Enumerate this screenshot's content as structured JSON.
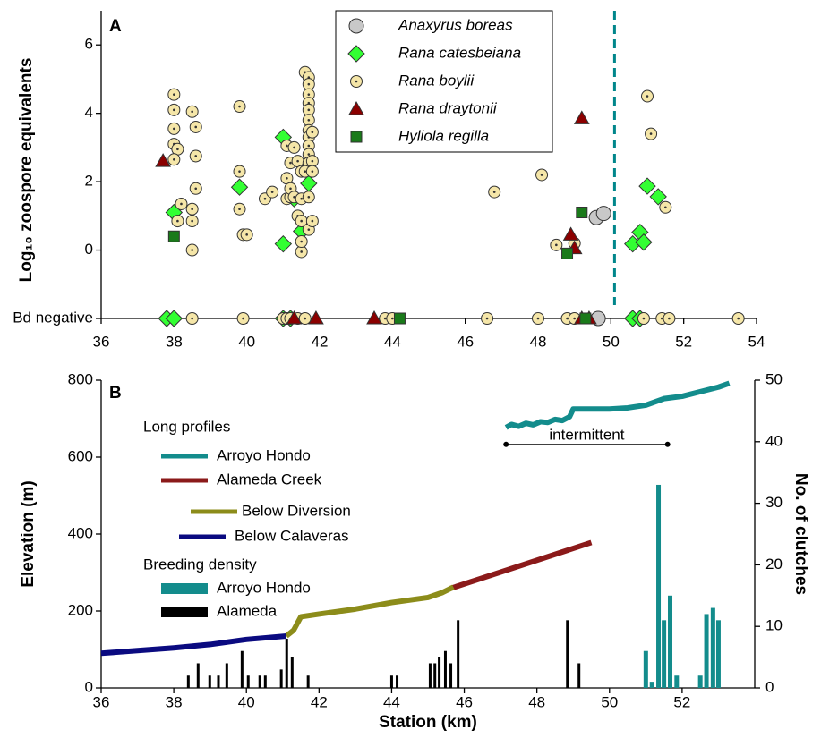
{
  "chart_data": [
    {
      "type": "scatter",
      "panel_label": "A",
      "y_label": "Log₁₀ zoospore equivalents",
      "xlim": [
        36,
        54
      ],
      "xticks": [
        36,
        38,
        40,
        42,
        44,
        46,
        48,
        50,
        52,
        54
      ],
      "ylim": [
        -2,
        7
      ],
      "yticks": [
        {
          "value": -2,
          "label": "Bd negative"
        },
        0,
        2,
        4,
        6
      ],
      "vline": 50.1,
      "vline_color": "#00868b",
      "series": [
        {
          "name": "Anaxyrus boreas",
          "marker": "circle",
          "color": "#c8c8c8",
          "x": [
            49.6,
            49.8,
            49.65
          ],
          "values": [
            0.95,
            1.07,
            -2
          ]
        },
        {
          "name": "Rana catesbeiana",
          "marker": "diamond",
          "color": "#33ff33",
          "x": [
            38.0,
            39.8,
            41.0,
            41.0,
            41.3,
            41.5,
            41.7,
            51.0,
            51.3,
            50.8,
            50.6,
            50.9,
            37.8,
            38.0,
            41.0,
            41.2,
            50.6,
            50.8
          ],
          "values": [
            1.1,
            1.84,
            3.3,
            0.18,
            1.5,
            0.55,
            1.95,
            1.87,
            1.56,
            0.52,
            0.18,
            0.23,
            -2,
            -2,
            -2,
            -2,
            -2,
            -2
          ]
        },
        {
          "name": "Rana boylii",
          "marker": "dot-circle",
          "color": "#f5e6a8",
          "x": [
            38.0,
            38.0,
            38.0,
            38.0,
            38.1,
            38.0,
            38.1,
            38.2,
            38.5,
            38.6,
            38.6,
            38.6,
            38.5,
            38.5,
            38.5,
            39.8,
            39.8,
            39.8,
            39.9,
            40.0,
            40.5,
            40.7,
            41.1,
            41.2,
            41.1,
            41.2,
            41.1,
            41.2,
            41.3,
            41.4,
            41.3,
            41.4,
            41.5,
            41.5,
            41.5,
            41.5,
            41.5,
            41.6,
            41.7,
            41.7,
            41.7,
            41.7,
            41.7,
            41.7,
            41.7,
            41.7,
            41.7,
            41.7,
            41.7,
            41.6,
            41.7,
            41.7,
            41.8,
            41.8,
            41.8,
            41.8,
            46.8,
            48.1,
            48.5,
            49.0,
            51.0,
            51.1,
            51.5,
            38.5,
            39.9,
            41.0,
            41.1,
            41.2,
            41.4,
            41.6,
            43.8,
            44.0,
            46.6,
            48.0,
            48.8,
            49.0,
            50.9,
            51.4,
            51.6,
            53.5
          ],
          "values": [
            4.55,
            4.1,
            3.55,
            3.1,
            2.95,
            2.65,
            0.85,
            1.35,
            4.05,
            3.6,
            2.75,
            1.8,
            1.2,
            0.85,
            0.0,
            4.2,
            2.3,
            1.2,
            0.45,
            0.45,
            1.5,
            1.7,
            1.5,
            1.55,
            3.05,
            2.55,
            2.1,
            1.8,
            1.55,
            2.6,
            3.0,
            1.0,
            -0.05,
            0.25,
            0.85,
            1.5,
            2.3,
            5.2,
            5.05,
            4.85,
            4.55,
            4.3,
            4.1,
            3.8,
            3.5,
            3.3,
            3.05,
            2.8,
            2.55,
            2.3,
            1.55,
            0.6,
            3.45,
            2.6,
            2.3,
            0.85,
            1.7,
            2.2,
            0.15,
            0.2,
            4.5,
            3.4,
            1.25,
            -2,
            -2,
            -2,
            -2,
            -2,
            -2,
            -2,
            -2,
            -2,
            -2,
            -2,
            -2,
            -2,
            -2,
            -2,
            -2,
            -2
          ]
        },
        {
          "name": "Rana draytonii",
          "marker": "triangle",
          "color": "#8b0000",
          "x": [
            37.7,
            49.2,
            48.9,
            49.0,
            41.3,
            41.9,
            43.5,
            49.2,
            49.4
          ],
          "values": [
            2.6,
            3.85,
            0.45,
            0.05,
            -2,
            -2,
            -2,
            -2,
            -2
          ]
        },
        {
          "name": "Hyliola regilla",
          "marker": "square",
          "color": "#1a7a1a",
          "x": [
            38.0,
            49.2,
            48.8,
            44.2,
            49.3
          ],
          "values": [
            0.4,
            1.1,
            -0.1,
            -2,
            -2
          ]
        }
      ]
    },
    {
      "type": "combo",
      "panel_label": "B",
      "x_label": "Station (km)",
      "y_label": "Elevation (m)",
      "y2_label": "No. of clutches",
      "xlim": [
        36,
        54
      ],
      "xticks": [
        36,
        38,
        40,
        42,
        44,
        46,
        48,
        50,
        52
      ],
      "ylim": [
        0,
        800
      ],
      "yticks": [
        0,
        200,
        400,
        600,
        800
      ],
      "y2lim": [
        0,
        50
      ],
      "y2ticks": [
        0,
        10,
        20,
        30,
        40,
        50
      ],
      "legend_groups": [
        "Long profiles",
        "Breeding density"
      ],
      "annotation": {
        "text": "intermittent",
        "x": [
          47.15,
          51.6
        ],
        "y": 633
      },
      "series": [
        {
          "name": "Arroyo Hondo",
          "type": "line",
          "color": "#138c8c",
          "x": [
            47.15,
            47.3,
            47.5,
            47.7,
            47.9,
            48.1,
            48.3,
            48.5,
            48.7,
            48.9,
            49.0,
            50.0,
            50.5,
            51.0,
            51.5,
            52.0,
            52.5,
            53.0,
            53.3
          ],
          "values": [
            677,
            685,
            680,
            688,
            684,
            692,
            690,
            698,
            695,
            705,
            725,
            725,
            728,
            735,
            752,
            758,
            770,
            782,
            792
          ]
        },
        {
          "name": "Alameda Creek",
          "type": "line",
          "color": "#8b1a1a",
          "x": [
            45.6,
            49.5
          ],
          "values": [
            258,
            378
          ]
        },
        {
          "name": "Below Diversion",
          "type": "line",
          "color": "#8c8c1a",
          "x": [
            41.1,
            41.3,
            41.5,
            42.0,
            43.0,
            44.0,
            45.0,
            45.4,
            45.7
          ],
          "values": [
            135,
            150,
            185,
            192,
            205,
            222,
            235,
            248,
            262
          ]
        },
        {
          "name": "Below Calaveras",
          "type": "line",
          "color": "#0a0a80",
          "x": [
            36,
            37,
            38,
            39,
            40,
            41.1
          ],
          "values": [
            90,
            97,
            104,
            113,
            126,
            135
          ]
        },
        {
          "name": "Arroyo Hondo",
          "type": "bar",
          "axis": "y2",
          "color": "#138c8c",
          "x": [
            51.0,
            51.17,
            51.35,
            51.5,
            51.67,
            51.85,
            52.5,
            52.67,
            52.85,
            53.0
          ],
          "values": [
            6,
            1,
            33,
            11,
            15,
            2,
            2,
            12,
            13,
            11
          ]
        },
        {
          "name": "Alameda",
          "type": "bar",
          "axis": "y2",
          "color": "#000000",
          "x": [
            38.4,
            38.67,
            38.99,
            39.23,
            39.46,
            39.88,
            40.05,
            40.37,
            40.52,
            40.96,
            41.11,
            41.26,
            41.7,
            44.0,
            44.15,
            45.06,
            45.19,
            45.31,
            45.48,
            45.63,
            45.83,
            48.84,
            49.16
          ],
          "values": [
            2,
            4,
            2,
            2,
            4,
            6,
            2,
            2,
            2,
            3,
            8,
            5,
            2,
            2,
            2,
            4,
            4,
            5,
            6,
            4,
            11,
            11,
            4
          ]
        }
      ]
    }
  ]
}
